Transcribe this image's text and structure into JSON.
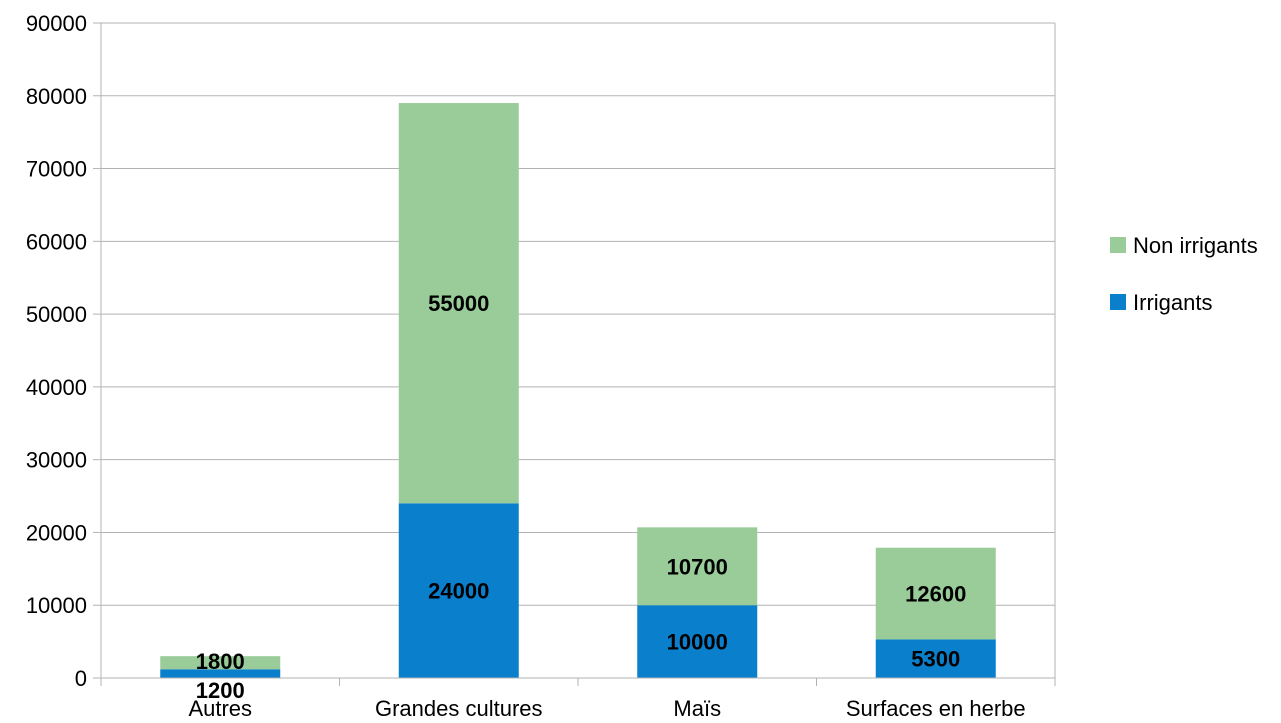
{
  "chart_data": {
    "type": "bar",
    "stacked": true,
    "categories": [
      "Autres",
      "Grandes cultures",
      "Maïs",
      "Surfaces en herbe"
    ],
    "series": [
      {
        "name": "Irrigants",
        "values": [
          1200,
          24000,
          10000,
          5300
        ],
        "color": "#0a7fcc"
      },
      {
        "name": "Non irrigants",
        "values": [
          1800,
          55000,
          10700,
          12600
        ],
        "color": "#99cc99"
      }
    ],
    "ylim": [
      0,
      90000
    ],
    "yticks": [
      "0",
      "10000",
      "20000",
      "30000",
      "40000",
      "50000",
      "60000",
      "70000",
      "80000",
      "90000"
    ],
    "grid": true,
    "legend": "right"
  }
}
